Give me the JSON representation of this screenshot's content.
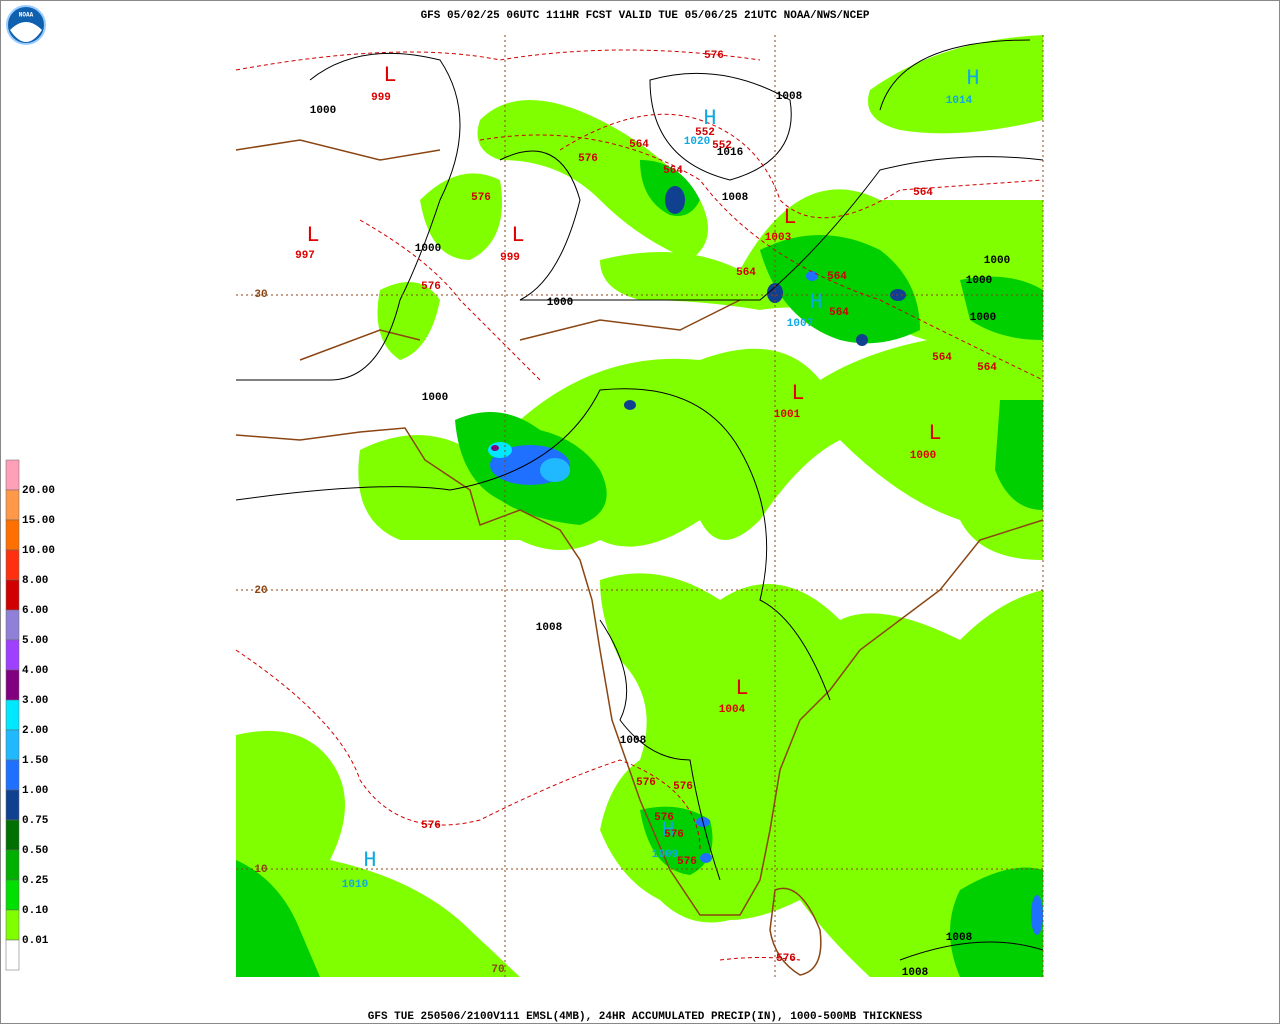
{
  "header": {
    "title": "GFS 05/02/25 06UTC 111HR FCST VALID TUE 05/06/25 21UTC NOAA/NWS/NCEP"
  },
  "footer": {
    "caption": "GFS TUE 250506/2100V111 EMSL(4MB), 24HR ACCUMULATED PRECIP(IN), 1000-500MB THICKNESS"
  },
  "legend": {
    "labels": [
      "20.00",
      "15.00",
      "10.00",
      "8.00",
      "6.00",
      "5.00",
      "4.00",
      "3.00",
      "2.00",
      "1.50",
      "1.00",
      "0.75",
      "0.50",
      "0.25",
      "0.10",
      "0.01"
    ],
    "colors": [
      "#ffa0b8",
      "#ff9848",
      "#ff7000",
      "#ff3010",
      "#d00000",
      "#9080d8",
      "#a040ff",
      "#800080",
      "#00e8ff",
      "#20b8ff",
      "#2070ff",
      "#104090",
      "#007000",
      "#00b000",
      "#00e000",
      "#80ff00",
      "#ffffff"
    ]
  },
  "lows": [
    {
      "letter": "L",
      "value": 999
    },
    {
      "letter": "L",
      "value": 997
    },
    {
      "letter": "L",
      "value": 999
    },
    {
      "letter": "L",
      "value": 1003
    },
    {
      "letter": "L",
      "value": 1001
    },
    {
      "letter": "L",
      "value": 1000
    },
    {
      "letter": "L",
      "value": 1004
    }
  ],
  "highs": [
    {
      "letter": "H",
      "value": 1014
    },
    {
      "letter": "H",
      "value": 1020
    },
    {
      "letter": "H",
      "value": 1007
    },
    {
      "letter": "H",
      "value": 1010
    },
    {
      "letter": "H",
      "value": 1009
    }
  ],
  "isobar_labels": [
    1000,
    1008,
    1016,
    1008,
    1000,
    1000,
    1000,
    1000,
    1000,
    1000,
    1008,
    1008,
    1008,
    1008
  ],
  "thickness_labels": [
    576,
    552,
    552,
    564,
    576,
    564,
    576,
    564,
    576,
    564,
    564,
    564,
    564,
    564,
    576,
    576,
    576,
    576,
    576,
    576,
    576
  ],
  "grid_labels": [
    30,
    20,
    10,
    70
  ]
}
